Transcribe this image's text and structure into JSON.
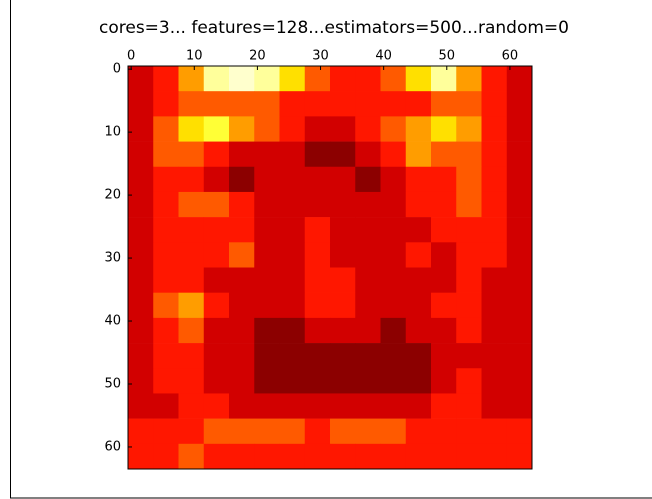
{
  "chart_data": {
    "type": "heatmap",
    "title": "cores=3... features=128...estimators=500...random=0",
    "colormap": "hot",
    "x": [
      0,
      4,
      8,
      12,
      16,
      20,
      24,
      28,
      32,
      36,
      40,
      44,
      48,
      52,
      56,
      60
    ],
    "y": [
      0,
      4,
      8,
      12,
      16,
      20,
      24,
      28,
      32,
      36,
      40,
      44,
      48,
      52,
      56,
      60
    ],
    "z": [
      [
        0.3,
        0.4,
        0.6,
        0.9,
        0.95,
        0.9,
        0.7,
        0.5,
        0.4,
        0.4,
        0.5,
        0.7,
        0.9,
        0.6,
        0.4,
        0.3
      ],
      [
        0.3,
        0.4,
        0.5,
        0.5,
        0.5,
        0.5,
        0.4,
        0.4,
        0.4,
        0.4,
        0.4,
        0.4,
        0.5,
        0.5,
        0.4,
        0.3
      ],
      [
        0.3,
        0.5,
        0.7,
        0.8,
        0.6,
        0.5,
        0.4,
        0.3,
        0.3,
        0.4,
        0.5,
        0.6,
        0.7,
        0.6,
        0.4,
        0.3
      ],
      [
        0.3,
        0.5,
        0.5,
        0.4,
        0.3,
        0.3,
        0.3,
        0.2,
        0.2,
        0.3,
        0.4,
        0.6,
        0.5,
        0.5,
        0.4,
        0.3
      ],
      [
        0.3,
        0.4,
        0.4,
        0.3,
        0.2,
        0.3,
        0.3,
        0.3,
        0.3,
        0.2,
        0.3,
        0.4,
        0.4,
        0.5,
        0.4,
        0.3
      ],
      [
        0.3,
        0.4,
        0.5,
        0.5,
        0.4,
        0.3,
        0.3,
        0.3,
        0.3,
        0.3,
        0.3,
        0.4,
        0.4,
        0.5,
        0.4,
        0.3
      ],
      [
        0.3,
        0.4,
        0.4,
        0.4,
        0.4,
        0.3,
        0.3,
        0.4,
        0.3,
        0.3,
        0.3,
        0.3,
        0.4,
        0.4,
        0.4,
        0.3
      ],
      [
        0.3,
        0.4,
        0.4,
        0.4,
        0.5,
        0.3,
        0.3,
        0.4,
        0.3,
        0.3,
        0.3,
        0.4,
        0.3,
        0.4,
        0.4,
        0.3
      ],
      [
        0.3,
        0.4,
        0.4,
        0.3,
        0.3,
        0.3,
        0.3,
        0.4,
        0.4,
        0.3,
        0.3,
        0.3,
        0.3,
        0.4,
        0.3,
        0.3
      ],
      [
        0.3,
        0.5,
        0.6,
        0.4,
        0.3,
        0.3,
        0.3,
        0.4,
        0.4,
        0.3,
        0.3,
        0.3,
        0.4,
        0.4,
        0.3,
        0.3
      ],
      [
        0.3,
        0.4,
        0.5,
        0.3,
        0.3,
        0.2,
        0.2,
        0.3,
        0.3,
        0.3,
        0.2,
        0.3,
        0.3,
        0.4,
        0.3,
        0.3
      ],
      [
        0.3,
        0.4,
        0.4,
        0.3,
        0.3,
        0.2,
        0.2,
        0.2,
        0.2,
        0.2,
        0.2,
        0.2,
        0.3,
        0.3,
        0.3,
        0.3
      ],
      [
        0.3,
        0.4,
        0.4,
        0.3,
        0.3,
        0.2,
        0.2,
        0.2,
        0.2,
        0.2,
        0.2,
        0.2,
        0.3,
        0.4,
        0.3,
        0.3
      ],
      [
        0.3,
        0.3,
        0.4,
        0.4,
        0.3,
        0.3,
        0.3,
        0.3,
        0.3,
        0.3,
        0.3,
        0.3,
        0.4,
        0.4,
        0.3,
        0.3
      ],
      [
        0.4,
        0.4,
        0.4,
        0.5,
        0.5,
        0.5,
        0.5,
        0.4,
        0.5,
        0.5,
        0.5,
        0.4,
        0.4,
        0.4,
        0.4,
        0.4
      ],
      [
        0.4,
        0.4,
        0.5,
        0.4,
        0.4,
        0.4,
        0.4,
        0.4,
        0.4,
        0.4,
        0.4,
        0.4,
        0.4,
        0.4,
        0.4,
        0.4
      ]
    ],
    "xlim": [
      -0.5,
      63.5
    ],
    "ylim": [
      63.5,
      -0.5
    ],
    "xticks": [
      0,
      10,
      20,
      30,
      40,
      50,
      60
    ],
    "yticks": [
      0,
      10,
      20,
      30,
      40,
      50,
      60
    ]
  }
}
